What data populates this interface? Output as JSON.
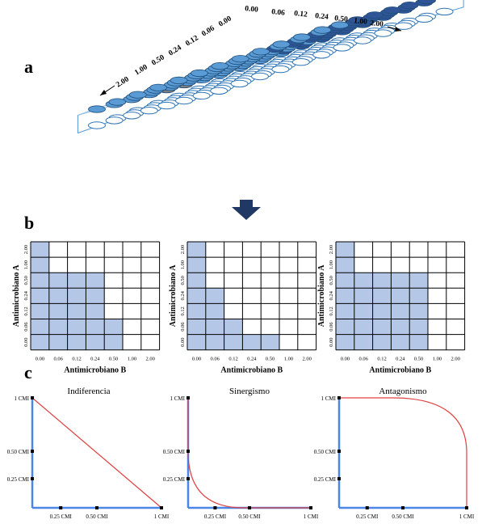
{
  "panels": {
    "a": "a",
    "b": "b",
    "c": "c"
  },
  "plate": {
    "labels_right": [
      "0.00",
      "0.06",
      "0.12",
      "0.24",
      "0.50",
      "1.00",
      "2.00"
    ],
    "labels_left": [
      "2.00",
      "1.00",
      "0.50",
      "0.24",
      "0.12",
      "0.06",
      "0.00"
    ],
    "colors": {
      "dark": "#2f5597",
      "light": "#5b9bd5",
      "gray": "#7f7f7f",
      "empty": "#ffffff"
    }
  },
  "grids": {
    "ylabel": "Antimicrobiano A",
    "xlabel": "Antimicrobiano B",
    "row_labels": [
      "2.00",
      "1.00",
      "0.50",
      "0.24",
      "0.12",
      "0.06",
      "0.00"
    ],
    "col_labels": [
      "0.00",
      "0.06",
      "0.12",
      "0.24",
      "0.50",
      "1.00",
      "2.00"
    ],
    "fill_color": "#b4c7e7",
    "filled_columns_per_row": [
      [
        1,
        1,
        4,
        4,
        4,
        5,
        5
      ],
      [
        1,
        1,
        1,
        2,
        2,
        3,
        5
      ],
      [
        1,
        1,
        5,
        5,
        5,
        5,
        5
      ]
    ]
  },
  "curves": {
    "titles": [
      "Indiferencia",
      "Sinergismo",
      "Antagonismo"
    ],
    "y_ticks": [
      "1 CMI",
      "0.50 CMI",
      "0.25 CMI"
    ],
    "x_ticks": [
      "0.25 CMI",
      "0.50 CMI",
      "1 CMI"
    ],
    "axis_color": "#4a86e8",
    "curve_color": "#e04040"
  }
}
